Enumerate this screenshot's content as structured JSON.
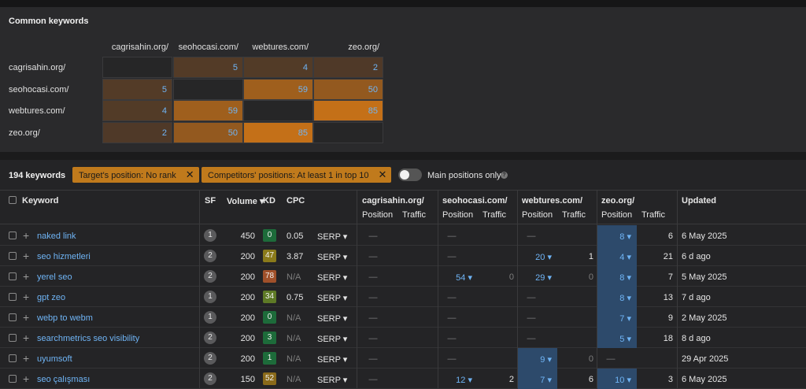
{
  "common": {
    "title": "Common keywords",
    "columns": [
      "cagrisahin.org/",
      "seohocasi.com/",
      "webtures.com/",
      "zeo.org/"
    ],
    "rows": [
      {
        "label": "cagrisahin.org/",
        "values": [
          "",
          "5",
          "4",
          "2"
        ]
      },
      {
        "label": "seohocasi.com/",
        "values": [
          "5",
          "",
          "59",
          "50"
        ]
      },
      {
        "label": "webtures.com/",
        "values": [
          "4",
          "59",
          "",
          "85"
        ]
      },
      {
        "label": "zeo.org/",
        "values": [
          "2",
          "50",
          "85",
          ""
        ]
      }
    ]
  },
  "filters": {
    "count": "194 keywords",
    "chip1": "Target's position: No rank",
    "chip2": "Competitors' positions: At least 1 in top 10",
    "toggle_label": "Main positions only",
    "info": "?",
    "close": "✕"
  },
  "table": {
    "headers": {
      "keyword": "Keyword",
      "sf": "SF",
      "volume": "Volume ▾",
      "kd": "KD",
      "cpc": "CPC",
      "site1": "cagrisahin.org/",
      "site2": "seohocasi.com/",
      "site3": "webtures.com/",
      "site4": "zeo.org/",
      "position": "Position",
      "traffic": "Traffic",
      "updated": "Updated"
    },
    "rows": [
      {
        "keyword": "naked link",
        "sf": "1",
        "volume": "450",
        "kd": "0",
        "kd_color": "#1d6b3a",
        "cpc": "0.05",
        "serp": "SERP ▾",
        "p1": "—",
        "t1": "",
        "p2": "—",
        "t2": "",
        "p3": "—",
        "t3": "",
        "p4": "8 ▾",
        "t4": "6",
        "updated": "6 May 2025"
      },
      {
        "keyword": "seo hizmetleri",
        "sf": "2",
        "volume": "200",
        "kd": "47",
        "kd_color": "#8a7a1a",
        "cpc": "3.87",
        "serp": "SERP ▾",
        "p1": "—",
        "t1": "",
        "p2": "—",
        "t2": "",
        "p3": "20 ▾",
        "t3": "1",
        "p4": "4 ▾",
        "t4": "21",
        "updated": "6 d ago"
      },
      {
        "keyword": "yerel seo",
        "sf": "2",
        "volume": "200",
        "kd": "78",
        "kd_color": "#a0502a",
        "cpc": "N/A",
        "serp": "SERP ▾",
        "p1": "—",
        "t1": "",
        "p2": "54 ▾",
        "t2": "0",
        "p3": "29 ▾",
        "t3": "0",
        "p4": "8 ▾",
        "t4": "7",
        "updated": "5 May 2025"
      },
      {
        "keyword": "gpt zeo",
        "sf": "1",
        "volume": "200",
        "kd": "34",
        "kd_color": "#5e7a26",
        "cpc": "0.75",
        "serp": "SERP ▾",
        "p1": "—",
        "t1": "",
        "p2": "—",
        "t2": "",
        "p3": "—",
        "t3": "",
        "p4": "8 ▾",
        "t4": "13",
        "updated": "7 d ago"
      },
      {
        "keyword": "webp to webm",
        "sf": "1",
        "volume": "200",
        "kd": "0",
        "kd_color": "#1d6b3a",
        "cpc": "N/A",
        "serp": "SERP ▾",
        "p1": "—",
        "t1": "",
        "p2": "—",
        "t2": "",
        "p3": "—",
        "t3": "",
        "p4": "7 ▾",
        "t4": "9",
        "updated": "2 May 2025"
      },
      {
        "keyword": "searchmetrics seo visibility",
        "sf": "2",
        "volume": "200",
        "kd": "3",
        "kd_color": "#1d6b3a",
        "cpc": "N/A",
        "serp": "SERP ▾",
        "p1": "—",
        "t1": "",
        "p2": "—",
        "t2": "",
        "p3": "—",
        "t3": "",
        "p4": "5 ▾",
        "t4": "18",
        "updated": "8 d ago"
      },
      {
        "keyword": "uyumsoft",
        "sf": "2",
        "volume": "200",
        "kd": "1",
        "kd_color": "#1d6b3a",
        "cpc": "N/A",
        "serp": "SERP ▾",
        "p1": "—",
        "t1": "",
        "p2": "—",
        "t2": "",
        "p3": "9 ▾",
        "t3": "0",
        "p4": "—",
        "t4": "",
        "updated": "29 Apr 2025"
      },
      {
        "keyword": "seo çalışması",
        "sf": "2",
        "volume": "150",
        "kd": "52",
        "kd_color": "#8a6a1a",
        "cpc": "N/A",
        "serp": "SERP ▾",
        "p1": "—",
        "t1": "",
        "p2": "12 ▾",
        "t2": "2",
        "p3": "7 ▾",
        "t3": "6",
        "p4": "10 ▾",
        "t4": "3",
        "updated": "6 May 2025"
      }
    ]
  },
  "colors": {
    "accent": "#c07a1c",
    "link": "#6fb4f5",
    "highlight": "#2d4a6b"
  }
}
